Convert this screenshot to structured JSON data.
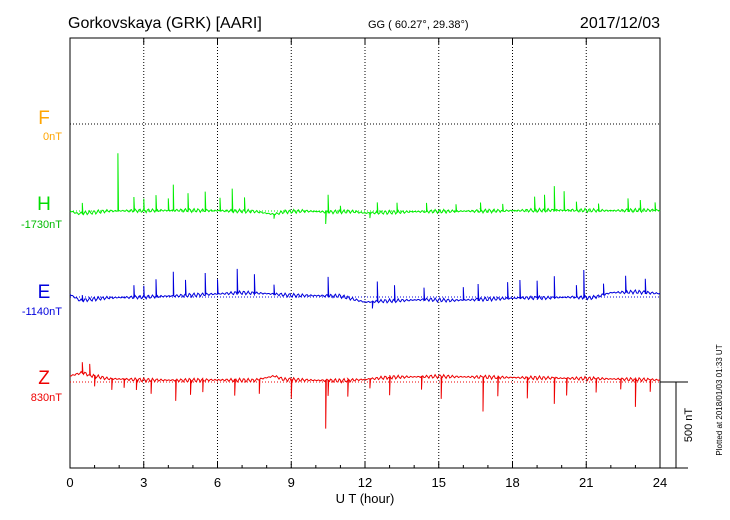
{
  "header": {
    "station": "Gorkovskaya (GRK)  [AARI]",
    "coords": "GG ( 60.27°,  29.38°)",
    "date": "2017/12/03"
  },
  "plotted_note": "Plotted at 2018/01/03 01:33 UT",
  "scale_label": "500 nT",
  "chart_data": {
    "type": "line",
    "xlabel": "U T (hour)",
    "xlim": [
      0,
      24
    ],
    "x_ticks": [
      0,
      3,
      6,
      9,
      12,
      15,
      18,
      21,
      24
    ],
    "grid": true,
    "series": [
      {
        "name": "F",
        "baseline_label": "0nT",
        "color": "#ffa500",
        "values": []
      },
      {
        "name": "H",
        "baseline_label": "-1730nT",
        "color": "#00ee00",
        "base": [
          [
            0.0,
            0
          ],
          [
            0.3,
            -15
          ],
          [
            0.8,
            -10
          ],
          [
            1.5,
            0
          ],
          [
            3.0,
            2
          ],
          [
            4.5,
            4
          ],
          [
            6.0,
            2
          ],
          [
            7.5,
            -2
          ],
          [
            8.3,
            -20
          ],
          [
            8.7,
            -5
          ],
          [
            9.5,
            0
          ],
          [
            10.5,
            -6
          ],
          [
            11.5,
            -3
          ],
          [
            12.0,
            -12
          ],
          [
            13.0,
            -8
          ],
          [
            14.0,
            -4
          ],
          [
            15.0,
            -2
          ],
          [
            16.0,
            -1
          ],
          [
            17.0,
            0
          ],
          [
            18.0,
            2
          ],
          [
            19.0,
            4
          ],
          [
            20.0,
            5
          ],
          [
            21.0,
            4
          ],
          [
            22.0,
            2
          ],
          [
            23.0,
            4
          ],
          [
            24.0,
            5
          ]
        ],
        "spikes": [
          [
            1.95,
            335
          ],
          [
            4.2,
            150
          ],
          [
            6.6,
            130
          ],
          [
            0.5,
            60
          ],
          [
            2.6,
            80
          ],
          [
            3.0,
            70
          ],
          [
            3.5,
            90
          ],
          [
            4.0,
            70
          ],
          [
            4.8,
            100
          ],
          [
            5.5,
            110
          ],
          [
            6.1,
            75
          ],
          [
            7.1,
            80
          ],
          [
            10.5,
            100
          ],
          [
            10.4,
            -70
          ],
          [
            12.2,
            -30
          ],
          [
            12.5,
            60
          ],
          [
            13.3,
            55
          ],
          [
            14.5,
            50
          ],
          [
            16.7,
            50
          ],
          [
            17.6,
            40
          ],
          [
            18.9,
            80
          ],
          [
            19.7,
            140
          ],
          [
            20.1,
            110
          ],
          [
            19.3,
            90
          ],
          [
            20.6,
            50
          ],
          [
            21.5,
            40
          ],
          [
            22.7,
            70
          ],
          [
            23.2,
            60
          ],
          [
            23.8,
            45
          ],
          [
            8.3,
            -25
          ],
          [
            11.0,
            35
          ],
          [
            15.7,
            40
          ]
        ],
        "ylim": [
          -200,
          400
        ]
      },
      {
        "name": "E",
        "baseline_label": "-1140nT",
        "color": "#0000dd",
        "base": [
          [
            0.0,
            15
          ],
          [
            0.4,
            -20
          ],
          [
            0.8,
            -15
          ],
          [
            1.5,
            -5
          ],
          [
            3.0,
            0
          ],
          [
            4.5,
            8
          ],
          [
            6.0,
            18
          ],
          [
            7.0,
            25
          ],
          [
            8.0,
            20
          ],
          [
            9.0,
            10
          ],
          [
            10.0,
            8
          ],
          [
            11.0,
            6
          ],
          [
            12.0,
            -30
          ],
          [
            12.5,
            -25
          ],
          [
            13.5,
            -20
          ],
          [
            14.5,
            -15
          ],
          [
            15.5,
            -20
          ],
          [
            16.5,
            -15
          ],
          [
            17.5,
            -10
          ],
          [
            18.5,
            -5
          ],
          [
            19.5,
            -5
          ],
          [
            20.5,
            0
          ],
          [
            21.2,
            -5
          ],
          [
            21.5,
            5
          ],
          [
            22.0,
            25
          ],
          [
            23.0,
            30
          ],
          [
            24.0,
            20
          ]
        ],
        "spikes": [
          [
            0.5,
            30
          ],
          [
            2.6,
            70
          ],
          [
            3.0,
            65
          ],
          [
            3.5,
            100
          ],
          [
            4.2,
            140
          ],
          [
            4.7,
            90
          ],
          [
            5.5,
            125
          ],
          [
            6.0,
            85
          ],
          [
            6.8,
            140
          ],
          [
            7.5,
            110
          ],
          [
            8.3,
            55
          ],
          [
            10.5,
            110
          ],
          [
            12.5,
            115
          ],
          [
            13.2,
            90
          ],
          [
            14.4,
            70
          ],
          [
            16.0,
            75
          ],
          [
            16.6,
            90
          ],
          [
            17.8,
            95
          ],
          [
            18.3,
            105
          ],
          [
            19.0,
            100
          ],
          [
            19.7,
            125
          ],
          [
            20.6,
            70
          ],
          [
            20.9,
            160
          ],
          [
            21.7,
            65
          ],
          [
            22.6,
            95
          ],
          [
            23.4,
            80
          ],
          [
            12.3,
            -40
          ]
        ],
        "ylim": [
          -200,
          400
        ]
      },
      {
        "name": "Z",
        "baseline_label": "830nT",
        "color": "#ee0000",
        "base": [
          [
            0.0,
            35
          ],
          [
            0.5,
            55
          ],
          [
            0.8,
            40
          ],
          [
            1.5,
            20
          ],
          [
            3.0,
            12
          ],
          [
            4.5,
            10
          ],
          [
            6.0,
            12
          ],
          [
            7.5,
            10
          ],
          [
            8.3,
            35
          ],
          [
            8.7,
            15
          ],
          [
            10.0,
            10
          ],
          [
            11.0,
            8
          ],
          [
            12.0,
            15
          ],
          [
            13.0,
            28
          ],
          [
            14.0,
            30
          ],
          [
            15.0,
            32
          ],
          [
            16.0,
            30
          ],
          [
            17.0,
            28
          ],
          [
            18.0,
            26
          ],
          [
            19.0,
            24
          ],
          [
            20.0,
            22
          ],
          [
            21.0,
            20
          ],
          [
            22.0,
            18
          ],
          [
            23.0,
            15
          ],
          [
            24.0,
            12
          ]
        ],
        "spikes": [
          [
            0.5,
            60
          ],
          [
            0.8,
            65
          ],
          [
            1.0,
            -60
          ],
          [
            1.7,
            -65
          ],
          [
            2.2,
            -50
          ],
          [
            2.7,
            -60
          ],
          [
            3.3,
            -80
          ],
          [
            4.3,
            -120
          ],
          [
            4.9,
            -85
          ],
          [
            5.4,
            -70
          ],
          [
            6.7,
            -90
          ],
          [
            7.7,
            -85
          ],
          [
            10.4,
            -280
          ],
          [
            10.5,
            -90
          ],
          [
            11.3,
            -95
          ],
          [
            12.2,
            -55
          ],
          [
            13.0,
            -105
          ],
          [
            15.1,
            -130
          ],
          [
            16.8,
            -200
          ],
          [
            17.4,
            -110
          ],
          [
            18.6,
            -120
          ],
          [
            19.7,
            -150
          ],
          [
            20.2,
            -100
          ],
          [
            21.4,
            -80
          ],
          [
            22.4,
            -60
          ],
          [
            23.0,
            -160
          ],
          [
            23.6,
            -70
          ],
          [
            9.0,
            -110
          ],
          [
            14.3,
            -75
          ]
        ],
        "ylim": [
          -400,
          200
        ]
      }
    ]
  }
}
